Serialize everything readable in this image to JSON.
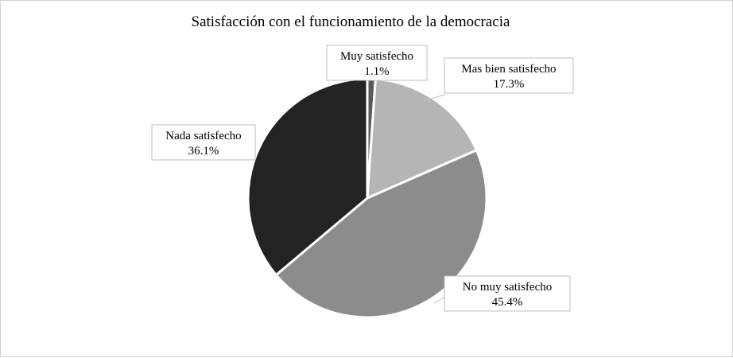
{
  "chart_data": {
    "type": "pie",
    "title": "Satisfacción con el funcionamiento de la democracia",
    "slices": [
      {
        "label": "Muy satisfecho",
        "value": 1.1,
        "value_label": "1.1%",
        "color": "#5a5a5a"
      },
      {
        "label": "Mas bien satisfecho",
        "value": 17.3,
        "value_label": "17.3%",
        "color": "#b5b5b5"
      },
      {
        "label": "No muy satisfecho",
        "value": 45.4,
        "value_label": "45.4%",
        "color": "#8c8c8c"
      },
      {
        "label": "Nada satisfecho",
        "value": 36.1,
        "value_label": "36.1%",
        "color": "#232323"
      }
    ],
    "legend": "none",
    "data_labels": "callout-boxes"
  }
}
